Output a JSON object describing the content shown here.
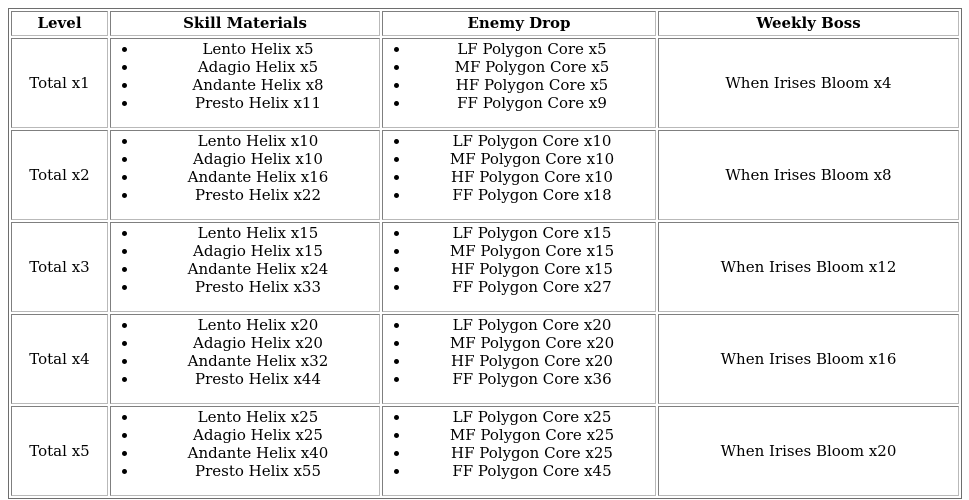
{
  "table": {
    "headers": [
      "Level",
      "Skill Materials",
      "Enemy Drop",
      "Weekly Boss"
    ],
    "rows": [
      {
        "level": "Total x1",
        "skill_materials": [
          "Lento Helix x5",
          "Adagio Helix x5",
          "Andante Helix x8",
          "Presto Helix x11"
        ],
        "enemy_drop": [
          "LF Polygon Core x5",
          "MF Polygon Core x5",
          "HF Polygon Core x5",
          "FF Polygon Core x9"
        ],
        "weekly_boss": "When Irises Bloom x4"
      },
      {
        "level": "Total x2",
        "skill_materials": [
          "Lento Helix x10",
          "Adagio Helix x10",
          "Andante Helix x16",
          "Presto Helix x22"
        ],
        "enemy_drop": [
          "LF Polygon Core x10",
          "MF Polygon Core x10",
          "HF Polygon Core x10",
          "FF Polygon Core x18"
        ],
        "weekly_boss": "When Irises Bloom x8"
      },
      {
        "level": "Total x3",
        "skill_materials": [
          "Lento Helix x15",
          "Adagio Helix x15",
          "Andante Helix x24",
          "Presto Helix x33"
        ],
        "enemy_drop": [
          "LF Polygon Core x15",
          "MF Polygon Core x15",
          "HF Polygon Core x15",
          "FF Polygon Core x27"
        ],
        "weekly_boss": "When Irises Bloom x12"
      },
      {
        "level": "Total x4",
        "skill_materials": [
          "Lento Helix x20",
          "Adagio Helix x20",
          "Andante Helix x32",
          "Presto Helix x44"
        ],
        "enemy_drop": [
          "LF Polygon Core x20",
          "MF Polygon Core x20",
          "HF Polygon Core x20",
          "FF Polygon Core x36"
        ],
        "weekly_boss": "When Irises Bloom x16"
      },
      {
        "level": "Total x5",
        "skill_materials": [
          "Lento Helix x25",
          "Adagio Helix x25",
          "Andante Helix x40",
          "Presto Helix x55"
        ],
        "enemy_drop": [
          "LF Polygon Core x25",
          "MF Polygon Core x25",
          "HF Polygon Core x25",
          "FF Polygon Core x45"
        ],
        "weekly_boss": "When Irises Bloom x20"
      }
    ]
  }
}
